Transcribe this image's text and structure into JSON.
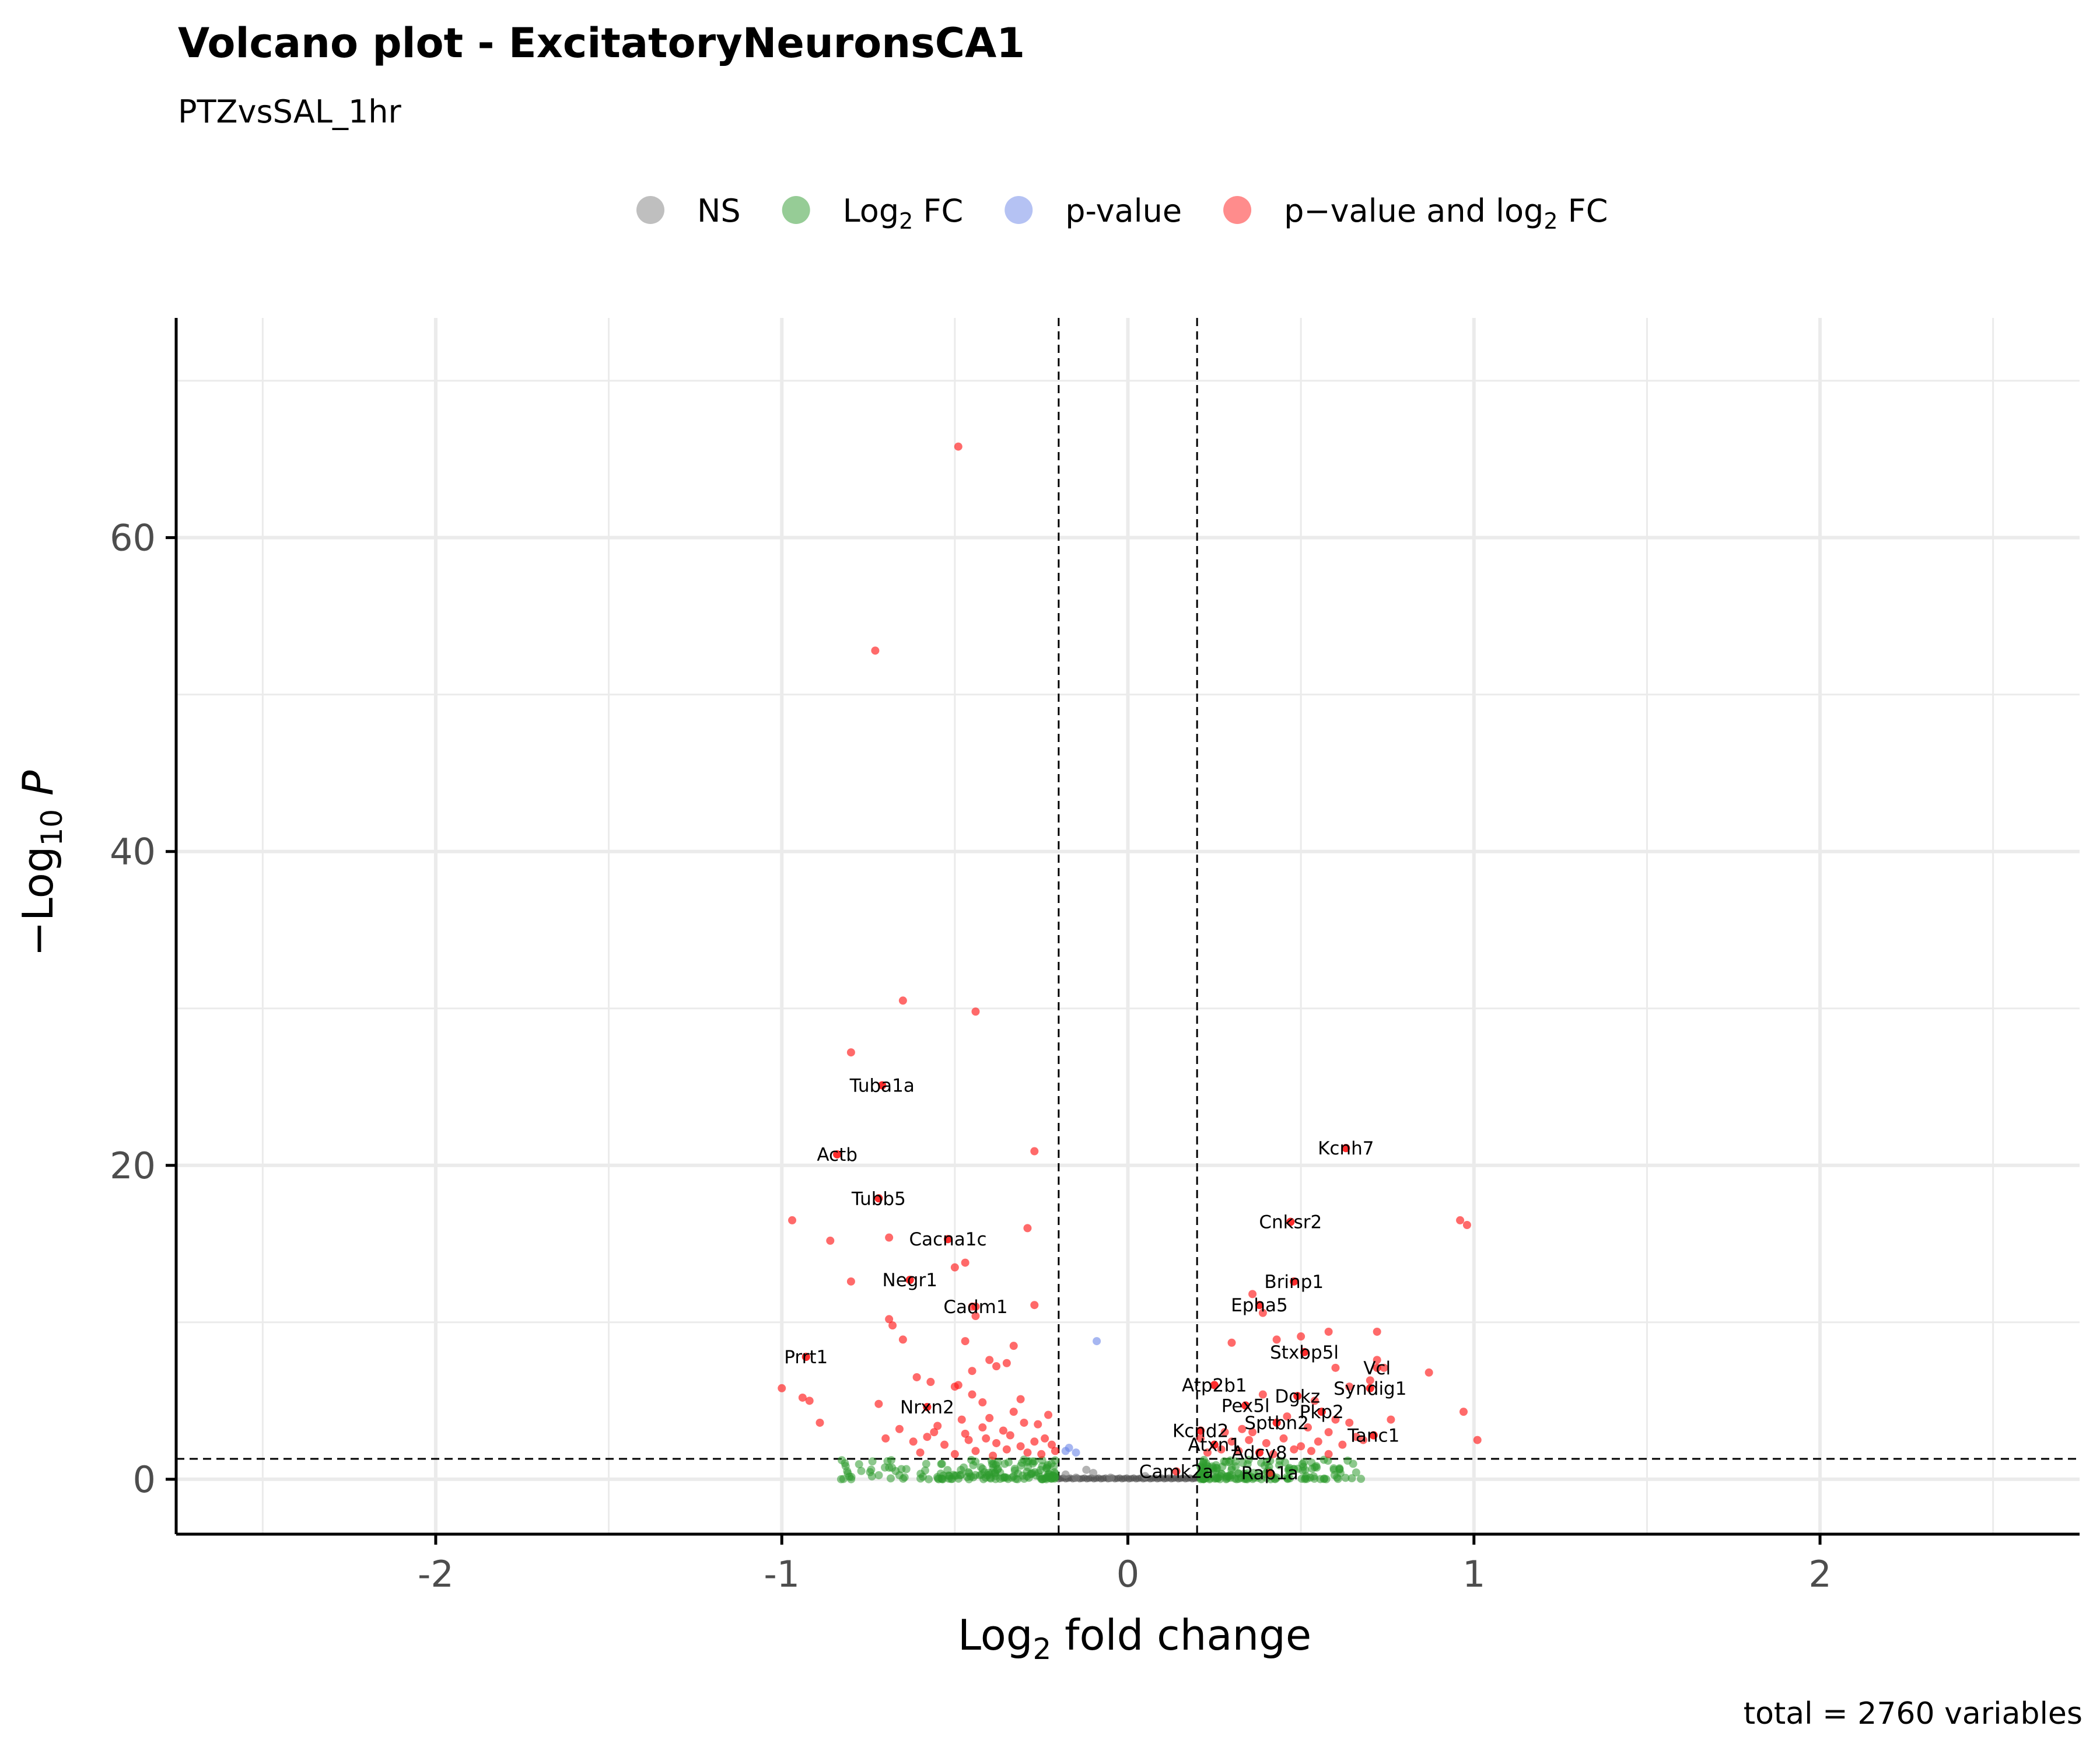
{
  "chart_data": {
    "type": "scatter",
    "title": "Volcano plot - ExcitatoryNeuronsCA1",
    "subtitle": "PTZvsSAL_1hr",
    "xlabel": "Log2 fold change",
    "ylabel": "-Log10 P",
    "caption": "total = 2760 variables",
    "xlim": [
      -2.75,
      2.75
    ],
    "ylim": [
      -3.5,
      74
    ],
    "x_ticks": [
      -2,
      -1,
      0,
      1,
      2
    ],
    "x_tick_labels": [
      "-2",
      "-1",
      "0",
      "1",
      "2"
    ],
    "y_ticks": [
      0,
      20,
      40,
      60
    ],
    "y_tick_labels": [
      "0",
      "20",
      "40",
      "60"
    ],
    "fc_cutoff": 0.2,
    "p_cutoff_log10": 1.3,
    "grid": true,
    "legend_position": "top",
    "legend": [
      {
        "key": "ns",
        "label": "NS",
        "color": "#808080"
      },
      {
        "key": "fc",
        "label": "Log",
        "sub": "2",
        "suffix": " FC",
        "color": "#2e9a2e"
      },
      {
        "key": "p",
        "label": "p-value",
        "color": "#6b85e8"
      },
      {
        "key": "both",
        "label": "p−value and log",
        "sub": "2",
        "suffix": " FC",
        "color": "#ff1a1a"
      }
    ],
    "labeled_genes": [
      {
        "gene": "Tuba1a",
        "x": -0.71,
        "y": 25.1
      },
      {
        "gene": "Actb",
        "x": -0.84,
        "y": 20.7
      },
      {
        "gene": "Tubb5",
        "x": -0.72,
        "y": 17.9
      },
      {
        "gene": "Cacna1c",
        "x": -0.52,
        "y": 15.3
      },
      {
        "gene": "Negr1",
        "x": -0.63,
        "y": 12.7
      },
      {
        "gene": "Cadm1",
        "x": -0.44,
        "y": 11.0
      },
      {
        "gene": "Prrt1",
        "x": -0.93,
        "y": 7.8
      },
      {
        "gene": "Nrxn2",
        "x": -0.58,
        "y": 4.6
      },
      {
        "gene": "Kcnh7",
        "x": 0.63,
        "y": 21.1
      },
      {
        "gene": "Cnksr2",
        "x": 0.47,
        "y": 16.4
      },
      {
        "gene": "Brinp1",
        "x": 0.48,
        "y": 12.6
      },
      {
        "gene": "Epha5",
        "x": 0.38,
        "y": 11.1
      },
      {
        "gene": "Stxbp5l",
        "x": 0.51,
        "y": 8.1
      },
      {
        "gene": "Vcl",
        "x": 0.72,
        "y": 7.1
      },
      {
        "gene": "Syndig1",
        "x": 0.7,
        "y": 5.8
      },
      {
        "gene": "Atp2b1",
        "x": 0.25,
        "y": 6.0
      },
      {
        "gene": "Dgkz",
        "x": 0.49,
        "y": 5.3
      },
      {
        "gene": "Pex5l",
        "x": 0.34,
        "y": 4.7
      },
      {
        "gene": "Pkp2",
        "x": 0.56,
        "y": 4.3
      },
      {
        "gene": "Sptbn2",
        "x": 0.43,
        "y": 3.6
      },
      {
        "gene": "Kcnd2",
        "x": 0.21,
        "y": 3.1
      },
      {
        "gene": "Tanc1",
        "x": 0.71,
        "y": 2.8
      },
      {
        "gene": "Atxn1",
        "x": 0.25,
        "y": 2.2
      },
      {
        "gene": "Adcy8",
        "x": 0.38,
        "y": 1.7
      },
      {
        "gene": "Camk2a",
        "x": 0.14,
        "y": 0.5
      },
      {
        "gene": "Rap1a",
        "x": 0.41,
        "y": 0.4
      }
    ],
    "points_both": [
      [
        -0.49,
        65.8
      ],
      [
        -0.73,
        52.8
      ],
      [
        -0.65,
        30.5
      ],
      [
        -0.44,
        29.8
      ],
      [
        -0.8,
        27.2
      ],
      [
        -0.71,
        25.1
      ],
      [
        -0.84,
        20.7
      ],
      [
        -0.27,
        20.9
      ],
      [
        -0.72,
        17.9
      ],
      [
        -0.97,
        16.5
      ],
      [
        -0.86,
        15.2
      ],
      [
        -0.69,
        15.4
      ],
      [
        -0.52,
        15.3
      ],
      [
        -0.29,
        16.0
      ],
      [
        -0.47,
        13.8
      ],
      [
        -0.5,
        13.5
      ],
      [
        -0.8,
        12.6
      ],
      [
        -0.63,
        12.7
      ],
      [
        -0.45,
        11.0
      ],
      [
        -0.44,
        10.4
      ],
      [
        -0.27,
        11.1
      ],
      [
        -0.69,
        10.2
      ],
      [
        -0.68,
        9.8
      ],
      [
        -0.65,
        8.9
      ],
      [
        -0.47,
        8.8
      ],
      [
        -0.33,
        8.5
      ],
      [
        -0.93,
        7.8
      ],
      [
        -0.4,
        7.6
      ],
      [
        -0.38,
        7.2
      ],
      [
        -0.35,
        7.4
      ],
      [
        -0.45,
        6.9
      ],
      [
        -0.61,
        6.5
      ],
      [
        -0.57,
        6.2
      ],
      [
        -0.5,
        5.9
      ],
      [
        -0.49,
        6.0
      ],
      [
        -0.45,
        5.4
      ],
      [
        -1.0,
        5.8
      ],
      [
        -0.94,
        5.2
      ],
      [
        -0.92,
        5.0
      ],
      [
        -0.72,
        4.8
      ],
      [
        -0.58,
        4.6
      ],
      [
        -0.31,
        5.1
      ],
      [
        -0.42,
        4.9
      ],
      [
        -0.33,
        4.3
      ],
      [
        -0.89,
        3.6
      ],
      [
        -0.66,
        3.2
      ],
      [
        -0.55,
        3.4
      ],
      [
        -0.48,
        3.8
      ],
      [
        -0.4,
        3.9
      ],
      [
        -0.36,
        3.1
      ],
      [
        -0.3,
        3.6
      ],
      [
        -0.26,
        3.5
      ],
      [
        -0.23,
        4.1
      ],
      [
        -0.7,
        2.6
      ],
      [
        -0.62,
        2.4
      ],
      [
        -0.58,
        2.7
      ],
      [
        -0.53,
        2.2
      ],
      [
        -0.46,
        2.5
      ],
      [
        -0.41,
        2.6
      ],
      [
        -0.38,
        2.3
      ],
      [
        -0.34,
        2.8
      ],
      [
        -0.31,
        2.1
      ],
      [
        -0.27,
        2.4
      ],
      [
        -0.24,
        2.6
      ],
      [
        -0.22,
        2.2
      ],
      [
        -0.6,
        1.7
      ],
      [
        -0.5,
        1.6
      ],
      [
        -0.44,
        1.8
      ],
      [
        -0.39,
        1.5
      ],
      [
        -0.35,
        1.9
      ],
      [
        -0.29,
        1.7
      ],
      [
        -0.25,
        1.6
      ],
      [
        -0.21,
        1.8
      ],
      [
        -0.56,
        3.0
      ],
      [
        -0.47,
        2.9
      ],
      [
        -0.42,
        3.3
      ],
      [
        0.63,
        21.1
      ],
      [
        0.47,
        16.4
      ],
      [
        0.96,
        16.5
      ],
      [
        0.98,
        16.2
      ],
      [
        0.48,
        12.6
      ],
      [
        0.36,
        11.8
      ],
      [
        0.38,
        11.1
      ],
      [
        0.39,
        10.6
      ],
      [
        0.58,
        9.4
      ],
      [
        0.72,
        9.4
      ],
      [
        0.5,
        9.1
      ],
      [
        0.43,
        8.9
      ],
      [
        0.3,
        8.7
      ],
      [
        0.51,
        8.1
      ],
      [
        0.6,
        7.1
      ],
      [
        0.72,
        7.6
      ],
      [
        0.74,
        7.1
      ],
      [
        0.87,
        6.8
      ],
      [
        0.7,
        6.3
      ],
      [
        0.64,
        5.9
      ],
      [
        0.7,
        5.8
      ],
      [
        0.25,
        6.0
      ],
      [
        0.39,
        5.4
      ],
      [
        0.49,
        5.3
      ],
      [
        0.54,
        5.0
      ],
      [
        0.97,
        4.3
      ],
      [
        0.34,
        4.7
      ],
      [
        0.56,
        4.3
      ],
      [
        0.46,
        4.0
      ],
      [
        0.6,
        3.8
      ],
      [
        0.64,
        3.6
      ],
      [
        0.76,
        3.8
      ],
      [
        1.01,
        2.5
      ],
      [
        0.43,
        3.6
      ],
      [
        0.21,
        3.1
      ],
      [
        0.71,
        2.8
      ],
      [
        0.28,
        3.0
      ],
      [
        0.33,
        3.2
      ],
      [
        0.52,
        3.3
      ],
      [
        0.58,
        3.0
      ],
      [
        0.66,
        2.7
      ],
      [
        0.25,
        2.2
      ],
      [
        0.3,
        2.4
      ],
      [
        0.35,
        2.5
      ],
      [
        0.4,
        2.3
      ],
      [
        0.45,
        2.6
      ],
      [
        0.55,
        2.4
      ],
      [
        0.62,
        2.2
      ],
      [
        0.68,
        2.5
      ],
      [
        0.23,
        1.7
      ],
      [
        0.27,
        1.9
      ],
      [
        0.32,
        1.8
      ],
      [
        0.38,
        1.7
      ],
      [
        0.42,
        1.6
      ],
      [
        0.48,
        1.9
      ],
      [
        0.53,
        1.8
      ],
      [
        0.58,
        1.6
      ],
      [
        0.21,
        2.6
      ],
      [
        0.36,
        3.0
      ],
      [
        0.5,
        2.1
      ]
    ],
    "points_p": [
      [
        -0.09,
        8.8
      ],
      [
        -0.17,
        2.0
      ],
      [
        -0.15,
        1.7
      ],
      [
        -0.18,
        1.8
      ]
    ],
    "points_ns": [
      [
        -0.12,
        0.6
      ],
      [
        -0.18,
        0.3
      ],
      [
        -0.1,
        0.4
      ],
      [
        -0.15,
        0.1
      ],
      [
        0.05,
        0.2
      ],
      [
        -0.05,
        0.1
      ]
    ],
    "fc_band": {
      "neg": [
        -0.85,
        -0.21
      ],
      "pos": [
        0.21,
        0.68
      ],
      "count": 330,
      "ymax": 1.25
    }
  }
}
